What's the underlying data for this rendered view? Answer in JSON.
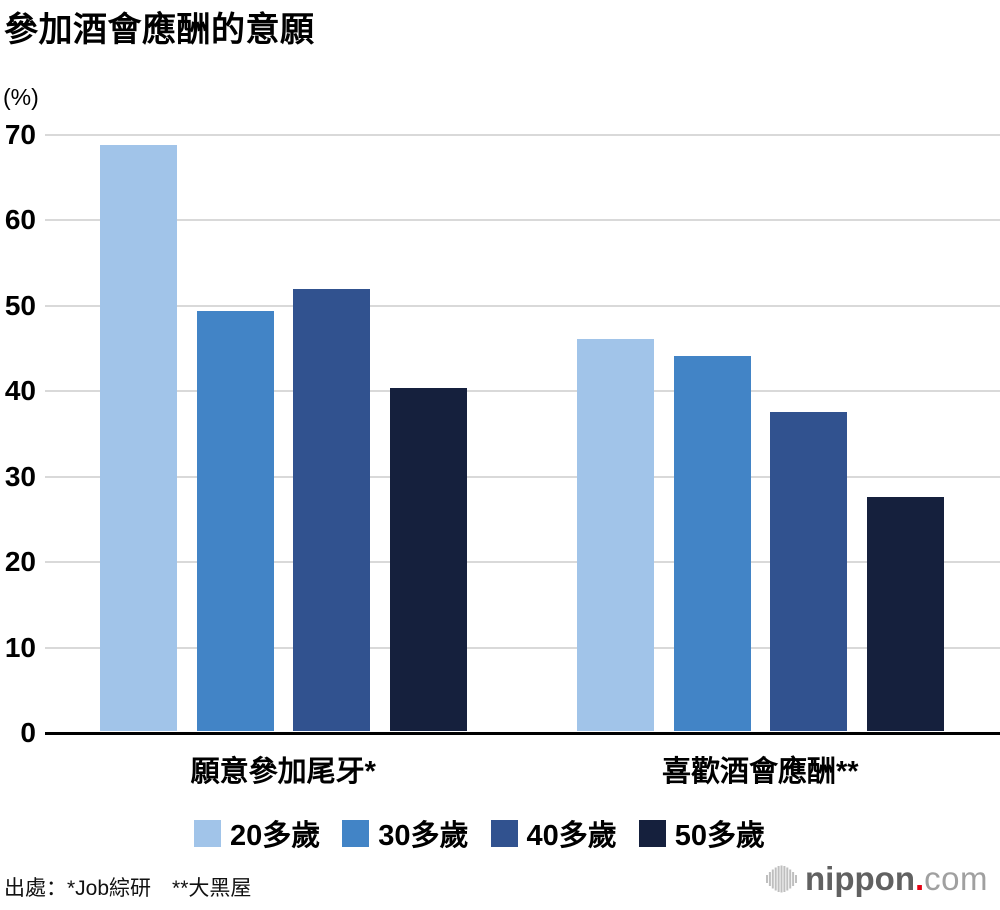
{
  "chart_data": {
    "type": "bar",
    "title": "參加酒會應酬的意願",
    "unit_label": "(%)",
    "categories": [
      "願意參加尾牙*",
      "喜歡酒會應酬**"
    ],
    "series": [
      {
        "name": "20多歲",
        "color": "#a1c4e9",
        "values": [
          68.8,
          46.1
        ]
      },
      {
        "name": "30多歲",
        "color": "#4284c6",
        "values": [
          49.3,
          44.1
        ]
      },
      {
        "name": "40多歲",
        "color": "#31528f",
        "values": [
          51.9,
          37.6
        ]
      },
      {
        "name": "50多歲",
        "color": "#15203d",
        "values": [
          40.4,
          27.6
        ]
      }
    ],
    "ylim": [
      0,
      70
    ],
    "yticks": [
      0,
      10,
      20,
      30,
      40,
      50,
      60,
      70
    ],
    "grid": true,
    "gridline_color": "#d9d9d9",
    "axis_color": "#000000",
    "legend_position": "bottom"
  },
  "footer": {
    "source": "出處：*Job綜研　**大黑屋",
    "logo": {
      "name": "nippon",
      "dot": ".",
      "tld": "com"
    }
  }
}
